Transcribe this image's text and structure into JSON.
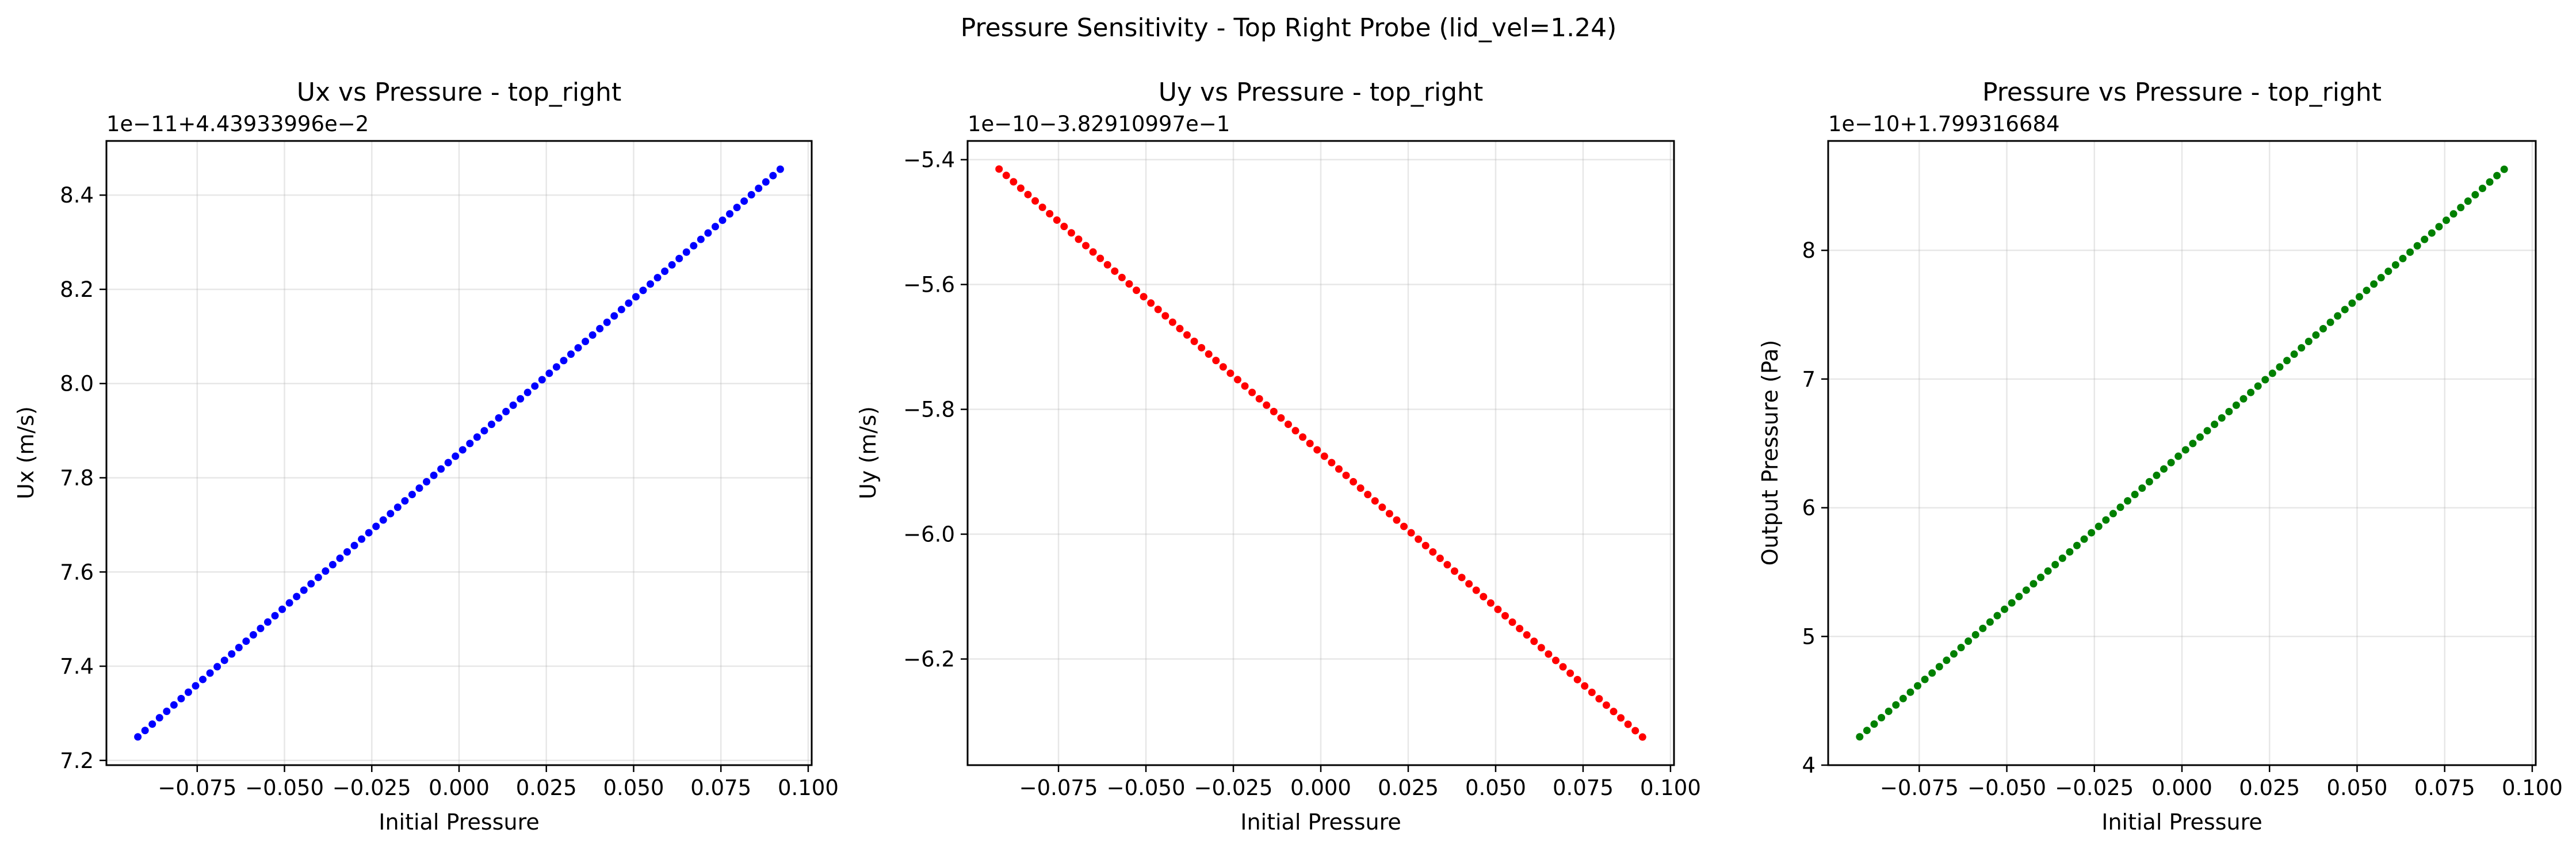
{
  "figure": {
    "suptitle": "Pressure Sensitivity - Top Right Probe (lid_vel=1.24)"
  },
  "chart_data": [
    {
      "type": "scatter",
      "title": "Ux vs Pressure - top_right",
      "xlabel": "Initial Pressure",
      "ylabel": "Ux (m/s)",
      "offset_text": "1e−11+4.43933996e−2",
      "color": "#0000ff",
      "grid": true,
      "x_range": [
        -0.092,
        0.092
      ],
      "y_range": [
        7.25,
        8.455
      ],
      "xlim": [
        -0.101,
        0.101
      ],
      "ylim": [
        7.19,
        8.515
      ],
      "xticks": [
        -0.075,
        -0.05,
        -0.025,
        0.0,
        0.025,
        0.05,
        0.075,
        0.1
      ],
      "xtick_labels": [
        "−0.075",
        "−0.050",
        "−0.025",
        "0.000",
        "0.025",
        "0.050",
        "0.075",
        "0.100"
      ],
      "yticks": [
        7.2,
        7.4,
        7.6,
        7.8,
        8.0,
        8.2,
        8.4
      ],
      "ytick_labels": [
        "7.2",
        "7.4",
        "7.6",
        "7.8",
        "8.0",
        "8.2",
        "8.4"
      ],
      "n_points": 90
    },
    {
      "type": "scatter",
      "title": "Uy vs Pressure - top_right",
      "xlabel": "Initial Pressure",
      "ylabel": "Uy (m/s)",
      "offset_text": "1e−10−3.82910997e−1",
      "color": "#ff0000",
      "grid": true,
      "x_range": [
        -0.092,
        0.092
      ],
      "y_range": [
        -5.415,
        -6.325
      ],
      "xlim": [
        -0.101,
        0.101
      ],
      "ylim": [
        -6.37,
        -5.37
      ],
      "xticks": [
        -0.075,
        -0.05,
        -0.025,
        0.0,
        0.025,
        0.05,
        0.075,
        0.1
      ],
      "xtick_labels": [
        "−0.075",
        "−0.050",
        "−0.025",
        "0.000",
        "0.025",
        "0.050",
        "0.075",
        "0.100"
      ],
      "yticks": [
        -6.2,
        -6.0,
        -5.8,
        -5.6,
        -5.4
      ],
      "ytick_labels": [
        "−6.2",
        "−6.0",
        "−5.8",
        "−5.6",
        "−5.4"
      ],
      "n_points": 90
    },
    {
      "type": "scatter",
      "title": "Pressure vs Pressure - top_right",
      "xlabel": "Initial Pressure",
      "ylabel": "Output Pressure (Pa)",
      "offset_text": "1e−10+1.799316684",
      "color": "#008000",
      "grid": true,
      "x_range": [
        -0.092,
        0.092
      ],
      "y_range": [
        4.22,
        8.63
      ],
      "xlim": [
        -0.101,
        0.101
      ],
      "ylim": [
        4.0,
        8.85
      ],
      "xticks": [
        -0.075,
        -0.05,
        -0.025,
        0.0,
        0.025,
        0.05,
        0.075,
        0.1
      ],
      "xtick_labels": [
        "−0.075",
        "−0.050",
        "−0.025",
        "0.000",
        "0.025",
        "0.050",
        "0.075",
        "0.100"
      ],
      "yticks": [
        4,
        5,
        6,
        7,
        8
      ],
      "ytick_labels": [
        "4",
        "5",
        "6",
        "7",
        "8"
      ],
      "n_points": 90
    }
  ]
}
